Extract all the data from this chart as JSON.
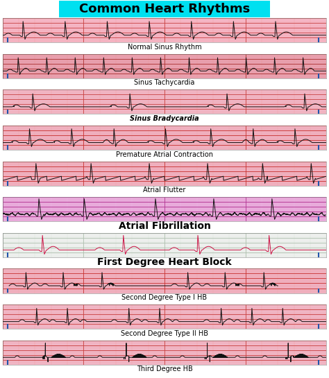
{
  "title": "Common Heart Rhythms",
  "title_bg": "#00E0F0",
  "title_fontsize": 13,
  "background_color": "#FFFFFF",
  "rhythms": [
    {
      "label": "Normal Sinus Rhythm",
      "label_style": "normal",
      "bg": "#F5B8C8",
      "grid_major": "#C84040",
      "grid_minor": "#F0A0A0",
      "type": "normal_sinus",
      "ecg_color": "#111111",
      "label_bold": false,
      "label_italic": false,
      "label_fontsize": 7
    },
    {
      "label": "Sinus Tachycardia",
      "label_style": "normal",
      "bg": "#E8A0B0",
      "grid_major": "#AA3030",
      "grid_minor": "#E89898",
      "type": "tachycardia",
      "ecg_color": "#111111",
      "label_bold": false,
      "label_italic": false,
      "label_fontsize": 7
    },
    {
      "label": "Sinus Bradycardia",
      "label_style": "bold_italic",
      "bg": "#F0B8C8",
      "grid_major": "#C84040",
      "grid_minor": "#F0A0A0",
      "type": "bradycardia",
      "ecg_color": "#111111",
      "label_bold": true,
      "label_italic": true,
      "label_fontsize": 7
    },
    {
      "label": "Premature Atrial Contraction",
      "label_style": "normal",
      "bg": "#F0B0C0",
      "grid_major": "#C83030",
      "grid_minor": "#EEAAAA",
      "type": "pac",
      "ecg_color": "#111111",
      "label_bold": false,
      "label_italic": false,
      "label_fontsize": 7
    },
    {
      "label": "Atrial Flutter",
      "label_style": "normal",
      "bg": "#F0B0C0",
      "grid_major": "#C83030",
      "grid_minor": "#EEAAAA",
      "type": "flutter",
      "ecg_color": "#111111",
      "label_bold": false,
      "label_italic": false,
      "label_fontsize": 7
    },
    {
      "label": "Atrial Fibrillation",
      "label_style": "bold",
      "bg": "#E8A8D8",
      "grid_major": "#B03090",
      "grid_minor": "#EAB8E8",
      "type": "afib",
      "ecg_color": "#111111",
      "label_bold": true,
      "label_italic": false,
      "label_fontsize": 10
    },
    {
      "label": "First Degree Heart Block",
      "label_style": "bold",
      "bg": "#F0F0F0",
      "grid_major": "#B0C0B0",
      "grid_minor": "#D8E8D8",
      "type": "first_degree",
      "ecg_color": "#CC1144",
      "label_bold": true,
      "label_italic": false,
      "label_fontsize": 10
    },
    {
      "label": "Second Degree Type I HB",
      "label_style": "normal",
      "bg": "#F0B0C0",
      "grid_major": "#C83030",
      "grid_minor": "#EEAAAA",
      "type": "second_degree_1",
      "ecg_color": "#111111",
      "label_bold": false,
      "label_italic": false,
      "label_fontsize": 7
    },
    {
      "label": "Second Degree Type II HB",
      "label_style": "normal",
      "bg": "#F0B8C8",
      "grid_major": "#C84040",
      "grid_minor": "#F0A0A0",
      "type": "second_degree_2",
      "ecg_color": "#111111",
      "label_bold": false,
      "label_italic": false,
      "label_fontsize": 7
    },
    {
      "label": "Third Degree HB",
      "label_style": "normal",
      "bg": "#F0B8C8",
      "grid_major": "#C84040",
      "grid_minor": "#F0A0A0",
      "type": "third_degree",
      "ecg_color": "#111111",
      "label_bold": false,
      "label_italic": false,
      "label_fontsize": 7
    }
  ],
  "tick_color": "#2255AA"
}
